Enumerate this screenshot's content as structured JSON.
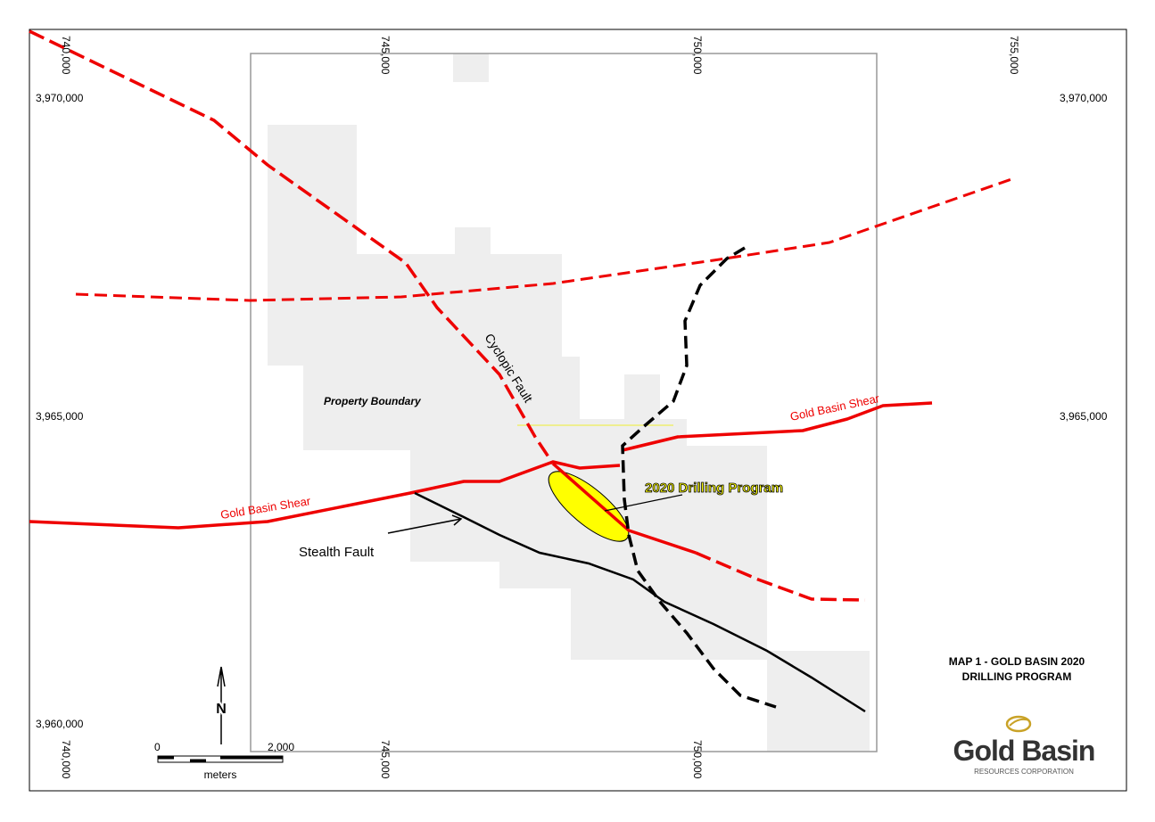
{
  "grid_labels": {
    "top": [
      "740,000",
      "745,000",
      "750,000",
      "755,000"
    ],
    "bottom": [
      "740,000",
      "745,000",
      "750,000"
    ],
    "left": [
      "3,970,000",
      "3,965,000",
      "3,960,000"
    ],
    "right": [
      "3,970,000",
      "3,965,000"
    ]
  },
  "labels": {
    "cyclopic_fault": "Cyclopic Fault",
    "property_boundary": "Property Boundary",
    "gold_basin_shear_east": "Gold Basin Shear",
    "gold_basin_shear_west": "Gold Basin Shear",
    "drilling_program": "2020 Drilling Program",
    "stealth_fault": "Stealth Fault"
  },
  "map_title": [
    "MAP 1 - GOLD BASIN 2020",
    "DRILLING PROGRAM"
  ],
  "north": "N",
  "scale": {
    "start": "0",
    "end": "2,000",
    "unit": "meters"
  },
  "logo": {
    "name": "Gold Basin",
    "subtitle": "RESOURCES CORPORATION"
  }
}
